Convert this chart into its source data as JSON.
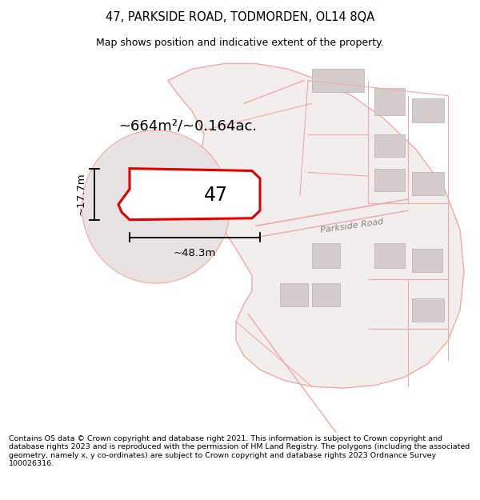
{
  "title": "47, PARKSIDE ROAD, TODMORDEN, OL14 8QA",
  "subtitle": "Map shows position and indicative extent of the property.",
  "footer": "Contains OS data © Crown copyright and database right 2021. This information is subject to Crown copyright and database rights 2023 and is reproduced with the permission of HM Land Registry. The polygons (including the associated geometry, namely x, y co-ordinates) are subject to Crown copyright and database rights 2023 Ordnance Survey 100026316.",
  "bg_map_color": "#d6e5d6",
  "bg_plot_color": "#f2eeee",
  "road_color": "#f0a8a8",
  "highlight_color": "#e00000",
  "building_color": "#d4cccc",
  "building_edge": "#c0b8b8",
  "title_fontsize": 10.5,
  "subtitle_fontsize": 9,
  "area_text": "~664m²/~0.164ac.",
  "width_text": "~48.3m",
  "height_text": "~17.7m",
  "number_text": "47",
  "road_label": "Parkside Road"
}
